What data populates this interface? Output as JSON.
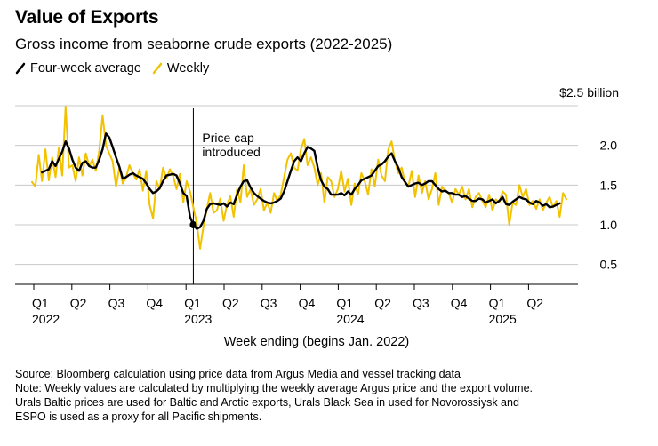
{
  "title": "Value of Exports",
  "subtitle": "Gross income from seaborne crude exports (2022-2025)",
  "legend": [
    {
      "label": "Four-week average",
      "color": "#000000"
    },
    {
      "label": "Weekly",
      "color": "#f2c200"
    }
  ],
  "footer": {
    "source": "Source: Bloomberg calculation using price data from Argus Media and vessel tracking data",
    "note_lines": [
      "Note: Weekly values are calculated by multiplying the weekly average Argus price and the export volume.",
      "Urals Baltic prices are used for Baltic and Arctic exports, Urals Black Sea in used for Novorossiysk and",
      "ESPO is used as a proxy for all Pacific shipments."
    ]
  },
  "chart_data": {
    "type": "line",
    "title": "Value of Exports",
    "subtitle": "Gross income from seaborne crude exports (2022-2025)",
    "xlabel": "Week ending (begins Jan. 2022)",
    "ylabel": "",
    "y_unit_label": "$2.5 billion",
    "ylim": [
      0.25,
      2.5
    ],
    "yticks": [
      0.5,
      1.0,
      1.5,
      2.0,
      2.5
    ],
    "ytick_labels": [
      "0.5",
      "1.0",
      "1.5",
      "2.0",
      ""
    ],
    "grid": true,
    "legend_position": "top-left",
    "x_ticks": [
      {
        "label": "Q1",
        "year": "2022"
      },
      {
        "label": "Q2",
        "year": ""
      },
      {
        "label": "Q3",
        "year": ""
      },
      {
        "label": "Q4",
        "year": ""
      },
      {
        "label": "Q1",
        "year": "2023"
      },
      {
        "label": "Q2",
        "year": ""
      },
      {
        "label": "Q3",
        "year": ""
      },
      {
        "label": "Q4",
        "year": ""
      },
      {
        "label": "Q1",
        "year": "2024"
      },
      {
        "label": "Q2",
        "year": ""
      },
      {
        "label": "Q3",
        "year": ""
      },
      {
        "label": "Q4",
        "year": ""
      },
      {
        "label": "Q1",
        "year": "2025"
      },
      {
        "label": "Q2",
        "year": ""
      }
    ],
    "annotation": {
      "lines": [
        "Price cap",
        "introduced"
      ],
      "week_index": 48
    },
    "series": [
      {
        "name": "Weekly",
        "color": "#f2c200",
        "values": [
          1.54,
          1.48,
          1.88,
          1.55,
          1.95,
          1.56,
          1.85,
          1.6,
          1.97,
          1.62,
          2.49,
          1.72,
          1.75,
          1.55,
          1.85,
          1.62,
          1.9,
          1.74,
          1.82,
          1.68,
          1.93,
          2.38,
          2.0,
          1.9,
          1.8,
          1.48,
          1.72,
          1.52,
          1.6,
          1.75,
          1.65,
          1.57,
          1.7,
          1.43,
          1.68,
          1.25,
          1.08,
          1.55,
          1.45,
          1.72,
          1.58,
          1.7,
          1.61,
          1.45,
          1.64,
          1.28,
          1.55,
          1.42,
          1.22,
          1.02,
          0.7,
          0.98,
          1.2,
          1.4,
          1.15,
          1.18,
          1.33,
          1.05,
          1.25,
          1.36,
          1.1,
          1.45,
          1.28,
          1.75,
          1.35,
          1.45,
          1.25,
          1.32,
          1.45,
          1.18,
          1.28,
          1.15,
          1.4,
          1.3,
          1.38,
          1.6,
          1.82,
          1.9,
          1.72,
          1.68,
          1.95,
          2.08,
          1.75,
          1.85,
          1.72,
          1.5,
          1.65,
          1.28,
          1.6,
          1.55,
          1.35,
          1.45,
          1.68,
          1.42,
          1.58,
          1.25,
          1.52,
          1.38,
          1.65,
          1.55,
          1.38,
          1.7,
          1.48,
          1.82,
          1.62,
          1.55,
          1.95,
          2.05,
          1.8,
          1.65,
          1.72,
          1.52,
          1.48,
          1.68,
          1.35,
          1.62,
          1.4,
          1.55,
          1.32,
          1.45,
          1.65,
          1.25,
          1.48,
          1.42,
          1.4,
          1.28,
          1.45,
          1.38,
          1.48,
          1.32,
          1.45,
          1.22,
          1.35,
          1.4,
          1.3,
          1.22,
          1.38,
          1.18,
          1.32,
          1.28,
          1.42,
          1.38,
          1.0,
          1.28,
          1.25,
          1.5,
          1.35,
          1.45,
          1.25,
          1.3,
          1.2,
          1.32,
          1.18,
          1.28,
          1.35,
          1.22,
          1.3,
          1.1,
          1.4,
          1.32
        ]
      },
      {
        "name": "Four-week average",
        "color": "#000000",
        "values": [
          null,
          null,
          null,
          1.66,
          1.68,
          1.7,
          1.8,
          1.74,
          1.83,
          1.92,
          2.05,
          1.96,
          1.82,
          1.72,
          1.68,
          1.78,
          1.8,
          1.74,
          1.72,
          1.72,
          1.82,
          1.95,
          2.15,
          2.1,
          1.98,
          1.85,
          1.73,
          1.58,
          1.6,
          1.63,
          1.65,
          1.62,
          1.6,
          1.58,
          1.52,
          1.45,
          1.4,
          1.42,
          1.46,
          1.55,
          1.62,
          1.63,
          1.64,
          1.62,
          1.52,
          1.4,
          1.36,
          1.1,
          1.0,
          0.95,
          0.97,
          1.05,
          1.2,
          1.26,
          1.27,
          1.26,
          1.25,
          1.27,
          1.23,
          1.28,
          1.26,
          1.38,
          1.48,
          1.55,
          1.56,
          1.47,
          1.4,
          1.36,
          1.33,
          1.3,
          1.28,
          1.27,
          1.28,
          1.3,
          1.33,
          1.42,
          1.55,
          1.68,
          1.8,
          1.85,
          1.8,
          1.9,
          1.98,
          1.96,
          1.93,
          1.72,
          1.56,
          1.48,
          1.45,
          1.38,
          1.38,
          1.38,
          1.4,
          1.37,
          1.42,
          1.38,
          1.45,
          1.5,
          1.56,
          1.58,
          1.6,
          1.62,
          1.68,
          1.74,
          1.76,
          1.8,
          1.86,
          1.9,
          1.8,
          1.72,
          1.6,
          1.54,
          1.48,
          1.5,
          1.52,
          1.53,
          1.5,
          1.52,
          1.55,
          1.55,
          1.5,
          1.45,
          1.42,
          1.43,
          1.4,
          1.4,
          1.38,
          1.38,
          1.35,
          1.36,
          1.33,
          1.3,
          1.3,
          1.33,
          1.32,
          1.28,
          1.3,
          1.32,
          1.27,
          1.3,
          1.35,
          1.26,
          1.25,
          1.29,
          1.32,
          1.35,
          1.33,
          1.32,
          1.28,
          1.26,
          1.3,
          1.28,
          1.24,
          1.26,
          1.22,
          1.23,
          1.25,
          1.27
        ]
      }
    ]
  }
}
